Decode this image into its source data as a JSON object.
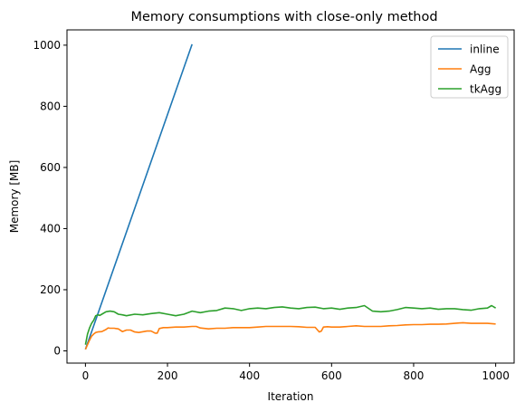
{
  "chart_data": {
    "type": "line",
    "title": "Memory consumptions with close-only method",
    "xlabel": "Iteration",
    "ylabel": "Memory [MB]",
    "xlim": [
      -45,
      1045
    ],
    "ylim": [
      -40,
      1050
    ],
    "xticks": [
      0,
      200,
      400,
      600,
      800,
      1000
    ],
    "yticks": [
      0,
      200,
      400,
      600,
      800,
      1000
    ],
    "grid": false,
    "legend_position": "top-right",
    "series": [
      {
        "name": "inline",
        "color": "#1f77b4",
        "x": [
          0,
          260
        ],
        "y": [
          5,
          1003
        ]
      },
      {
        "name": "Agg",
        "color": "#ff7f0e",
        "x": [
          0,
          5,
          10,
          15,
          20,
          25,
          30,
          40,
          50,
          55,
          60,
          70,
          80,
          90,
          100,
          110,
          120,
          130,
          150,
          160,
          170,
          175,
          180,
          190,
          200,
          220,
          240,
          260,
          270,
          280,
          300,
          320,
          340,
          360,
          380,
          400,
          420,
          440,
          460,
          480,
          500,
          520,
          540,
          560,
          570,
          575,
          580,
          590,
          600,
          620,
          640,
          660,
          680,
          700,
          720,
          740,
          760,
          780,
          800,
          820,
          840,
          860,
          880,
          900,
          920,
          940,
          960,
          980,
          1000
        ],
        "y": [
          5,
          20,
          35,
          48,
          55,
          60,
          62,
          63,
          70,
          75,
          74,
          74,
          72,
          63,
          68,
          68,
          62,
          60,
          65,
          65,
          58,
          58,
          73,
          76,
          76,
          78,
          78,
          80,
          80,
          75,
          72,
          74,
          74,
          76,
          76,
          76,
          78,
          80,
          80,
          80,
          80,
          79,
          77,
          77,
          62,
          65,
          78,
          79,
          78,
          78,
          80,
          82,
          80,
          80,
          80,
          82,
          83,
          85,
          86,
          86,
          87,
          87,
          88,
          90,
          92,
          90,
          90,
          90,
          88
        ]
      },
      {
        "name": "tkAgg",
        "color": "#2ca02c",
        "x": [
          0,
          5,
          10,
          15,
          20,
          25,
          30,
          35,
          40,
          50,
          60,
          70,
          80,
          90,
          100,
          120,
          140,
          160,
          180,
          200,
          220,
          240,
          260,
          280,
          300,
          320,
          340,
          360,
          380,
          400,
          420,
          440,
          460,
          480,
          500,
          520,
          540,
          560,
          580,
          600,
          620,
          640,
          660,
          680,
          700,
          720,
          740,
          760,
          780,
          800,
          820,
          840,
          860,
          880,
          900,
          920,
          940,
          960,
          980,
          990,
          1000
        ],
        "y": [
          20,
          55,
          75,
          90,
          100,
          115,
          118,
          116,
          120,
          128,
          130,
          128,
          120,
          118,
          115,
          120,
          118,
          122,
          125,
          120,
          115,
          120,
          130,
          125,
          130,
          132,
          140,
          138,
          132,
          138,
          140,
          138,
          142,
          144,
          140,
          138,
          142,
          143,
          138,
          140,
          136,
          140,
          142,
          148,
          130,
          128,
          130,
          135,
          142,
          140,
          138,
          140,
          136,
          138,
          138,
          135,
          133,
          138,
          140,
          148,
          140
        ]
      }
    ]
  }
}
